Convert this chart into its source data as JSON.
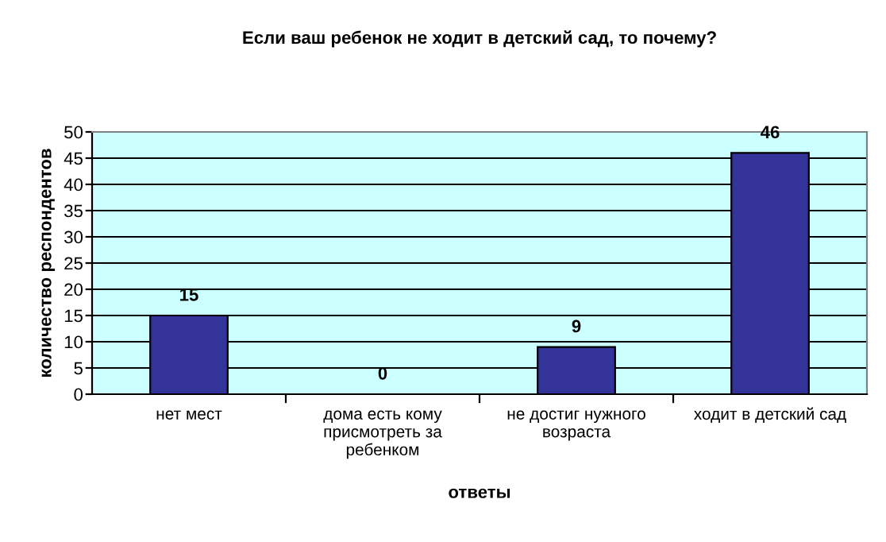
{
  "chart_data": {
    "type": "bar",
    "title": "Если ваш ребенок не ходит в детский сад, то почему?",
    "xlabel": "ответы",
    "ylabel": "количество респондентов",
    "categories": [
      "нет мест",
      "дома есть кому\nприсмотреть за\nребенком",
      "не достиг нужного\nвозраста",
      "ходит в детский сад"
    ],
    "values": [
      15,
      0,
      9,
      46
    ],
    "color": "#333399",
    "ylim": [
      0,
      50
    ],
    "yticks": [
      0,
      5,
      10,
      15,
      20,
      25,
      30,
      35,
      40,
      45,
      50
    ],
    "grid": "y",
    "data_labels": true
  }
}
